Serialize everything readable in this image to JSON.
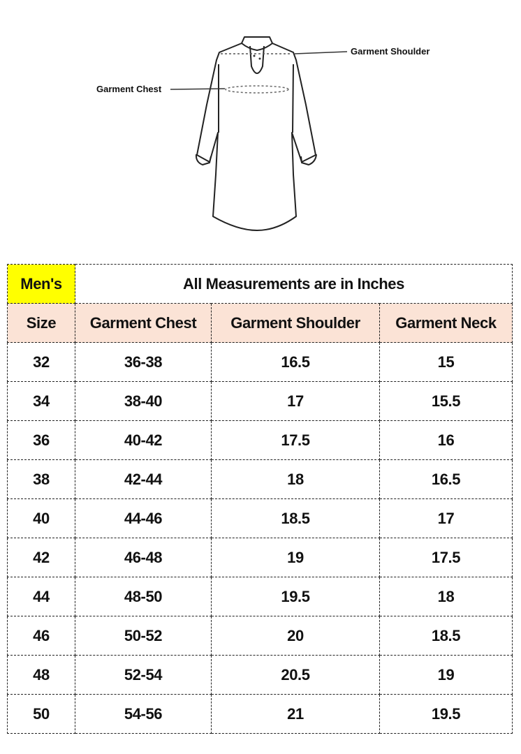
{
  "illustration": {
    "shoulder_label": "Garment Shoulder",
    "chest_label": "Garment Chest"
  },
  "table": {
    "category": "Men's",
    "note": "All Measurements are in Inches",
    "headers": [
      "Size",
      "Garment Chest",
      "Garment Shoulder",
      "Garment Neck"
    ],
    "rows": [
      [
        "32",
        "36-38",
        "16.5",
        "15"
      ],
      [
        "34",
        "38-40",
        "17",
        "15.5"
      ],
      [
        "36",
        "40-42",
        "17.5",
        "16"
      ],
      [
        "38",
        "42-44",
        "18",
        "16.5"
      ],
      [
        "40",
        "44-46",
        "18.5",
        "17"
      ],
      [
        "42",
        "46-48",
        "19",
        "17.5"
      ],
      [
        "44",
        "48-50",
        "19.5",
        "18"
      ],
      [
        "46",
        "50-52",
        "20",
        "18.5"
      ],
      [
        "48",
        "52-54",
        "20.5",
        "19"
      ],
      [
        "50",
        "54-56",
        "21",
        "19.5"
      ]
    ],
    "colors": {
      "category_bg": "#ffff00",
      "header_bg": "#fbe3d6"
    }
  }
}
